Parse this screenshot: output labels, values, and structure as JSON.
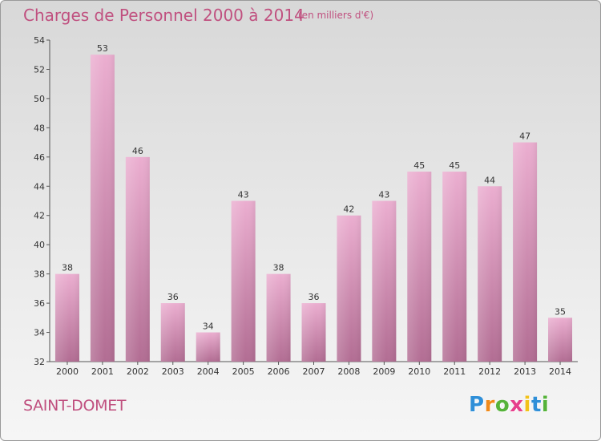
{
  "header": {
    "title": "Charges de Personnel 2000 à 2014",
    "subtitle": "(en milliers d'€)"
  },
  "footer": {
    "city": "SAINT-DOMET",
    "logo": "Proxiti"
  },
  "colors": {
    "title": "#c0507f",
    "bar_top": "#ebaed0",
    "bar_bottom": "#b26d93"
  },
  "chart_data": {
    "type": "bar",
    "categories": [
      "2000",
      "2001",
      "2002",
      "2003",
      "2004",
      "2005",
      "2006",
      "2007",
      "2008",
      "2009",
      "2010",
      "2011",
      "2012",
      "2013",
      "2014"
    ],
    "values": [
      38,
      53,
      46,
      36,
      34,
      43,
      38,
      36,
      42,
      43,
      45,
      45,
      44,
      47,
      35
    ],
    "title": "Charges de Personnel 2000 à 2014",
    "subtitle": "(en milliers d'€)",
    "ylim": [
      32,
      54
    ],
    "yticks": [
      32,
      34,
      36,
      38,
      40,
      42,
      44,
      46,
      48,
      50,
      52,
      54
    ],
    "grid": false,
    "data_labels": true
  }
}
